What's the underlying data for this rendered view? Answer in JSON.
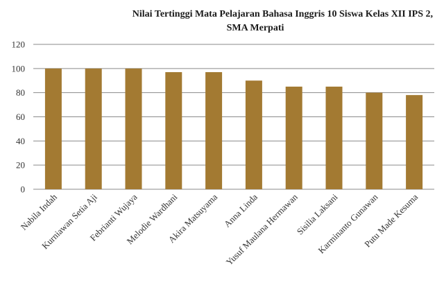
{
  "chart_data": {
    "type": "bar",
    "title": [
      "Nilai Tertinggi Mata Pelajaran Bahasa Inggris 10 Siswa Kelas XII IPS 2,",
      "SMA Merpati"
    ],
    "categories": [
      "Nabila Indah",
      "Kurniawan Setia Aji",
      "Febrianti Wujaya",
      "Melodie Wardhani",
      "Akira Matsuyama",
      "Anna Linda",
      "Yusuf Maulana Hermawan",
      "Sisilia Laksani",
      "Karminanto Gunawan",
      "Putu Made Kesuma"
    ],
    "values": [
      100,
      100,
      100,
      97,
      97,
      90,
      85,
      85,
      80,
      78
    ],
    "yticks": [
      "0",
      "20",
      "40",
      "60",
      "80",
      "100",
      "120"
    ],
    "ylim": [
      0,
      120
    ],
    "grid": true,
    "legend": "none",
    "bar_color": "#a37a32"
  }
}
